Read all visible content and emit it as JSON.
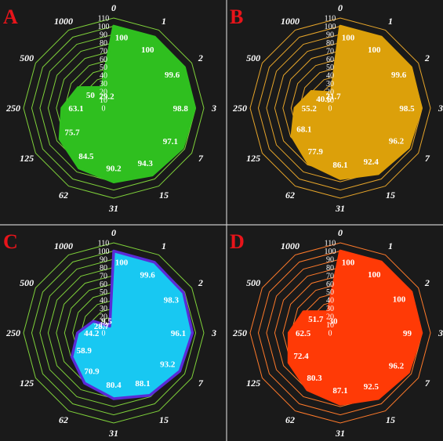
{
  "colors": {
    "background": "#1a1a1a",
    "panel_divider": "#c8c8c8",
    "letter": "#e8141a",
    "text": "#ffffff"
  },
  "chart_data": [
    {
      "panel": "A",
      "type": "radar",
      "categories": [
        "0",
        "1",
        "2",
        "3",
        "7",
        "15",
        "31",
        "62",
        "125",
        "250",
        "500",
        "1000"
      ],
      "values": [
        100,
        100,
        99.6,
        98.8,
        97.1,
        94.3,
        90.2,
        84.5,
        75.7,
        63.1,
        50,
        29.2
      ],
      "radial_ticks": [
        "0",
        "10",
        "20",
        "30",
        "40",
        "50",
        "60",
        "70",
        "80",
        "90",
        "100",
        "110"
      ],
      "rlim": [
        0,
        110
      ],
      "grid_color": "#7fd23a",
      "fill_color": "#2fbf1f",
      "edge_color": "#2fbf1f"
    },
    {
      "panel": "B",
      "type": "radar",
      "categories": [
        "0",
        "1",
        "2",
        "3",
        "7",
        "15",
        "31",
        "62",
        "125",
        "250",
        "500",
        "1000"
      ],
      "values": [
        100,
        100,
        99.6,
        98.5,
        96.2,
        92.4,
        86.1,
        77.9,
        68.1,
        55.2,
        40.6,
        21.7
      ],
      "radial_ticks": [
        "0",
        "10",
        "20",
        "30",
        "40",
        "50",
        "60",
        "70",
        "80",
        "90",
        "100",
        "110"
      ],
      "rlim": [
        0,
        110
      ],
      "grid_color": "#e6a52a",
      "fill_color": "#dca00a",
      "edge_color": "#dca00a"
    },
    {
      "panel": "C",
      "type": "radar",
      "categories": [
        "0",
        "1",
        "2",
        "3",
        "7",
        "15",
        "31",
        "62",
        "125",
        "250",
        "500",
        "1000"
      ],
      "values": [
        100,
        99.6,
        98.3,
        96.1,
        93.2,
        88.1,
        80.4,
        70.9,
        58.9,
        44.2,
        28.7,
        9.5
      ],
      "radial_ticks": [
        "0",
        "10",
        "20",
        "30",
        "40",
        "50",
        "60",
        "70",
        "80",
        "90",
        "100",
        "110"
      ],
      "rlim": [
        0,
        110
      ],
      "grid_color": "#7fd23a",
      "fill_color": "#18c8f2",
      "edge_color": "#5a2bd6"
    },
    {
      "panel": "D",
      "type": "radar",
      "categories": [
        "0",
        "1",
        "2",
        "3",
        "7",
        "15",
        "31",
        "62",
        "125",
        "250",
        "500",
        "1000"
      ],
      "values": [
        100,
        100,
        100,
        99,
        96.2,
        92.5,
        87.1,
        80.3,
        72.4,
        62.5,
        51.7,
        30
      ],
      "radial_ticks": [
        "0",
        "10",
        "20",
        "30",
        "40",
        "50",
        "60",
        "70",
        "80",
        "90",
        "100",
        "110"
      ],
      "rlim": [
        0,
        110
      ],
      "grid_color": "#ff7a2a",
      "fill_color": "#ff3a06",
      "edge_color": "#ff3a06"
    }
  ]
}
